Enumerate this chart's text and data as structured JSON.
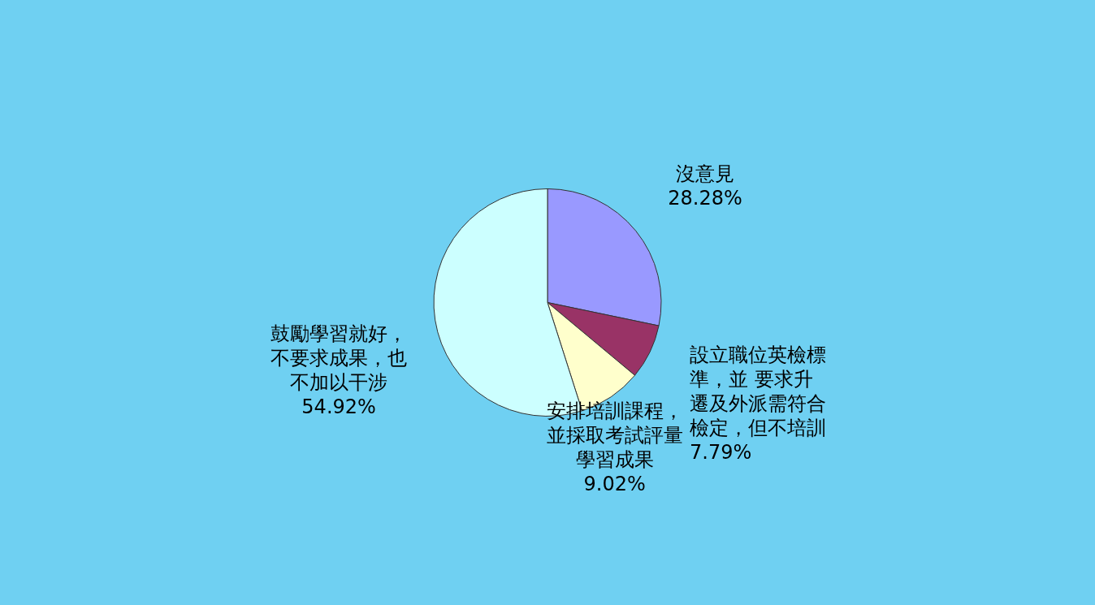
{
  "chart_data": {
    "type": "pie",
    "categories": [
      "沒意見",
      "設立職位英檢標準，並 要求升遷及外派需符合檢定，但不培訓",
      "安排培訓課程，並採取考試評量學習成果",
      "鼓勵學習就好，不要求成果，也不加以干涉"
    ],
    "values": [
      28.28,
      7.79,
      9.02,
      54.92
    ],
    "value_labels": [
      "28.28%",
      "7.79%",
      "9.02%",
      "54.92%"
    ],
    "colors": [
      "#9999ff",
      "#993366",
      "#ffffcc",
      "#ccffff"
    ],
    "legend": false
  }
}
